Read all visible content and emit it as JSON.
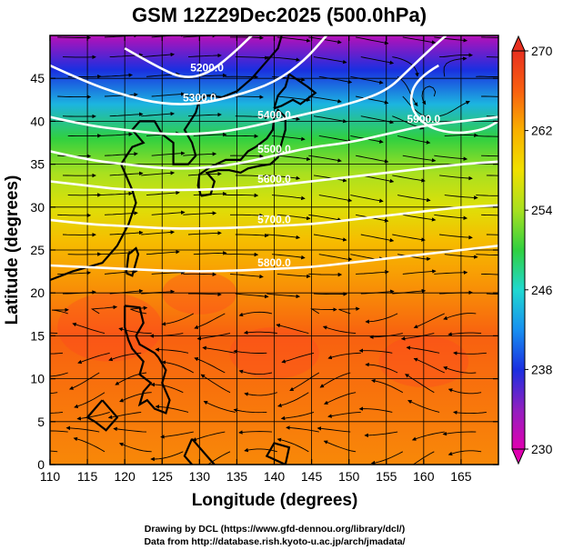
{
  "chart_data": {
    "type": "heatmap",
    "title": "GSM 12Z29Dec2025 (500.0hPa)",
    "xlabel": "Longitude (degrees)",
    "ylabel": "Latitude  (degrees)",
    "xlim": [
      110,
      170
    ],
    "ylim": [
      0,
      50
    ],
    "x_ticks": [
      "110",
      "115",
      "120",
      "125",
      "130",
      "135",
      "140",
      "145",
      "150",
      "155",
      "160",
      "165"
    ],
    "y_ticks": [
      "0",
      "5",
      "10",
      "15",
      "20",
      "25",
      "30",
      "35",
      "40",
      "45"
    ],
    "colorbar": {
      "min": 230,
      "max": 270,
      "ticks": [
        "230",
        "238",
        "246",
        "254",
        "262",
        "270"
      ],
      "colors": [
        "#e000b0",
        "#9020c0",
        "#1a2fe0",
        "#1890f0",
        "#20d8d0",
        "#30d040",
        "#a8e020",
        "#f0e000",
        "#f8b000",
        "#f86010",
        "#e83020"
      ]
    },
    "temperature_field": [
      {
        "lat": 50,
        "value": 232
      },
      {
        "lat": 46,
        "value": 238
      },
      {
        "lat": 42,
        "value": 244
      },
      {
        "lat": 38,
        "value": 250
      },
      {
        "lat": 34,
        "value": 254
      },
      {
        "lat": 30,
        "value": 257
      },
      {
        "lat": 26,
        "value": 261
      },
      {
        "lat": 22,
        "value": 263
      },
      {
        "lat": 15,
        "value": 266
      },
      {
        "lat": 8,
        "value": 265
      },
      {
        "lat": 0,
        "value": 264
      }
    ],
    "contours": [
      {
        "label": "5200.0",
        "points": [
          [
            120,
            48.5
          ],
          [
            125,
            46
          ],
          [
            128,
            45
          ],
          [
            131,
            45.5
          ],
          [
            134,
            47.5
          ],
          [
            137,
            50
          ]
        ]
      },
      {
        "label": "5300.0",
        "points": [
          [
            110,
            46.5
          ],
          [
            115,
            44.5
          ],
          [
            120,
            43
          ],
          [
            125,
            42
          ],
          [
            130,
            42
          ],
          [
            135,
            43
          ],
          [
            140,
            44.5
          ],
          [
            144,
            47
          ],
          [
            147,
            50
          ]
        ]
      },
      {
        "label": "5400.0",
        "points": [
          [
            110,
            40.5
          ],
          [
            115,
            39.5
          ],
          [
            120,
            39
          ],
          [
            125,
            38.5
          ],
          [
            130,
            38.5
          ],
          [
            135,
            39
          ],
          [
            140,
            40
          ],
          [
            145,
            41
          ],
          [
            150,
            42
          ],
          [
            155,
            43.5
          ],
          [
            158,
            46
          ],
          [
            161,
            48.5
          ],
          [
            163,
            50
          ]
        ]
      },
      {
        "label": "5500.0",
        "points": [
          [
            110,
            36.5
          ],
          [
            115,
            35.5
          ],
          [
            120,
            35
          ],
          [
            125,
            34.5
          ],
          [
            130,
            34.5
          ],
          [
            135,
            35
          ],
          [
            140,
            36
          ],
          [
            145,
            37
          ],
          [
            150,
            37.5
          ],
          [
            155,
            38.5
          ],
          [
            160,
            39.5
          ],
          [
            165,
            40
          ],
          [
            170,
            40.5
          ]
        ]
      },
      {
        "label": "5600.0",
        "points": [
          [
            110,
            33
          ],
          [
            115,
            32.5
          ],
          [
            120,
            32
          ],
          [
            125,
            32
          ],
          [
            130,
            32
          ],
          [
            135,
            32.2
          ],
          [
            140,
            32.5
          ],
          [
            145,
            33
          ],
          [
            150,
            33.5
          ],
          [
            155,
            34
          ],
          [
            160,
            34.5
          ],
          [
            165,
            35
          ],
          [
            170,
            35.3
          ]
        ]
      },
      {
        "label": "5700.0",
        "points": [
          [
            110,
            28.5
          ],
          [
            115,
            28
          ],
          [
            120,
            27.8
          ],
          [
            125,
            27.5
          ],
          [
            130,
            27.5
          ],
          [
            135,
            27.6
          ],
          [
            140,
            27.8
          ],
          [
            145,
            28
          ],
          [
            150,
            28.5
          ],
          [
            155,
            29
          ],
          [
            160,
            29.5
          ],
          [
            165,
            30
          ],
          [
            170,
            30.2
          ]
        ]
      },
      {
        "label": "5800.0",
        "points": [
          [
            110,
            23.2
          ],
          [
            115,
            23
          ],
          [
            120,
            22.8
          ],
          [
            125,
            22.6
          ],
          [
            130,
            22.5
          ],
          [
            135,
            22.6
          ],
          [
            140,
            22.8
          ],
          [
            145,
            23
          ],
          [
            150,
            23.5
          ],
          [
            155,
            24
          ],
          [
            160,
            24.5
          ],
          [
            165,
            25
          ],
          [
            170,
            25.5
          ]
        ]
      },
      {
        "label": "5900.0",
        "points": [
          [
            162,
            46.5
          ],
          [
            159,
            45
          ],
          [
            158,
            42
          ],
          [
            160,
            39.5
          ],
          [
            164,
            38.5
          ],
          [
            168,
            39
          ],
          [
            170,
            40
          ]
        ]
      }
    ],
    "credits": [
      "Drawing by DCL (https://www.gfd-dennou.org/library/dcl/)",
      "Data from http://database.rish.kyoto-u.ac.jp/arch/jmadata/"
    ]
  }
}
